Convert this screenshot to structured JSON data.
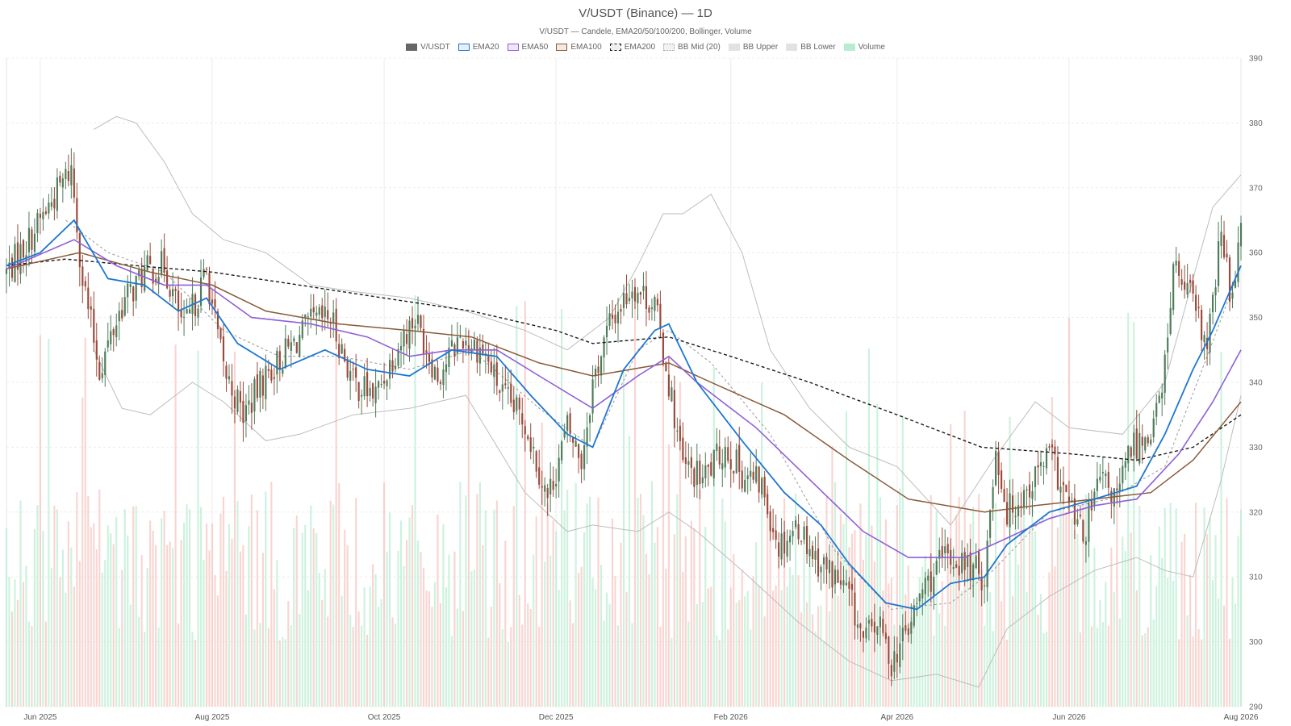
{
  "title": "V/USDT (Binance) — 1D",
  "subtitle": "V/USDT — Candele, EMA20/50/100/200, Bollinger, Volume",
  "colors": {
    "up": "#4d7c5a",
    "down": "#9a4a3a",
    "ema20": "#1f77d0",
    "ema50": "#8e5fd8",
    "ema100": "#8a5a3a",
    "ema200": "#1a1a1a",
    "bb": "#bdbdbd",
    "vol_up": "#b6ecd0",
    "vol_down": "#f6c3bd"
  },
  "legend": [
    {
      "label": "V/USDT",
      "swatch": "candle"
    },
    {
      "label": "EMA20",
      "swatch": "ema20"
    },
    {
      "label": "EMA50",
      "swatch": "ema50"
    },
    {
      "label": "EMA100",
      "swatch": "ema100"
    },
    {
      "label": "EMA200",
      "swatch": "ema200"
    },
    {
      "label": "BB Mid (20)",
      "swatch": "bbmid"
    },
    {
      "label": "BB Upper",
      "swatch": "bbup"
    },
    {
      "label": "BB Lower",
      "swatch": "bblow"
    },
    {
      "label": "Volume",
      "swatch": "volume"
    }
  ],
  "chart_data": {
    "type": "candlestick",
    "x_range": [
      "2025-05-20",
      "2026-08-01"
    ],
    "ylim": [
      290,
      390
    ],
    "yticks": [
      290,
      300,
      310,
      320,
      330,
      340,
      350,
      360,
      370,
      380,
      390
    ],
    "xticks": [
      {
        "date": "2025-06-01",
        "label": "Jun 2025"
      },
      {
        "date": "2025-08-01",
        "label": "Aug 2025"
      },
      {
        "date": "2025-10-01",
        "label": "Oct 2025"
      },
      {
        "date": "2025-12-01",
        "label": "Dec 2025"
      },
      {
        "date": "2026-02-01",
        "label": "Feb 2026"
      },
      {
        "date": "2026-04-01",
        "label": "Apr 2026"
      },
      {
        "date": "2026-06-01",
        "label": "Jun 2026"
      },
      {
        "date": "2026-08-01",
        "label": "Aug 2026"
      }
    ],
    "grid": true,
    "legend_position": "top-center",
    "close_path": [
      [
        "2025-05-20",
        357
      ],
      [
        "2025-05-28",
        362
      ],
      [
        "2025-06-05",
        368
      ],
      [
        "2025-06-12",
        373
      ],
      [
        "2025-06-16",
        356
      ],
      [
        "2025-06-22",
        342
      ],
      [
        "2025-06-30",
        352
      ],
      [
        "2025-07-08",
        357
      ],
      [
        "2025-07-15",
        358
      ],
      [
        "2025-07-22",
        348
      ],
      [
        "2025-07-30",
        357
      ],
      [
        "2025-08-05",
        342
      ],
      [
        "2025-08-12",
        335
      ],
      [
        "2025-08-20",
        341
      ],
      [
        "2025-08-28",
        345
      ],
      [
        "2025-09-05",
        349
      ],
      [
        "2025-09-12",
        350
      ],
      [
        "2025-09-20",
        340
      ],
      [
        "2025-09-28",
        338
      ],
      [
        "2025-10-05",
        345
      ],
      [
        "2025-10-12",
        350
      ],
      [
        "2025-10-20",
        341
      ],
      [
        "2025-10-28",
        347
      ],
      [
        "2025-11-05",
        345
      ],
      [
        "2025-11-12",
        338
      ],
      [
        "2025-11-20",
        334
      ],
      [
        "2025-11-28",
        322
      ],
      [
        "2025-12-05",
        333
      ],
      [
        "2025-12-10",
        328
      ],
      [
        "2025-12-14",
        340
      ],
      [
        "2025-12-20",
        349
      ],
      [
        "2025-12-28",
        355
      ],
      [
        "2026-01-05",
        352
      ],
      [
        "2026-01-10",
        340
      ],
      [
        "2026-01-15",
        327
      ],
      [
        "2026-01-22",
        325
      ],
      [
        "2026-01-30",
        330
      ],
      [
        "2026-02-05",
        326
      ],
      [
        "2026-02-12",
        324
      ],
      [
        "2026-02-18",
        315
      ],
      [
        "2026-02-25",
        318
      ],
      [
        "2026-03-03",
        313
      ],
      [
        "2026-03-10",
        310
      ],
      [
        "2026-03-15",
        307
      ],
      [
        "2026-03-20",
        300
      ],
      [
        "2026-03-25",
        303
      ],
      [
        "2026-03-30",
        297
      ],
      [
        "2026-04-05",
        302
      ],
      [
        "2026-04-10",
        308
      ],
      [
        "2026-04-18",
        313
      ],
      [
        "2026-04-25",
        312
      ],
      [
        "2026-05-02",
        310
      ],
      [
        "2026-05-06",
        330
      ],
      [
        "2026-05-10",
        320
      ],
      [
        "2026-05-18",
        324
      ],
      [
        "2026-05-25",
        329
      ],
      [
        "2026-06-01",
        321
      ],
      [
        "2026-06-06",
        316
      ],
      [
        "2026-06-12",
        325
      ],
      [
        "2026-06-18",
        322
      ],
      [
        "2026-06-23",
        330
      ],
      [
        "2026-06-29",
        332
      ],
      [
        "2026-07-04",
        338
      ],
      [
        "2026-07-08",
        358
      ],
      [
        "2026-07-15",
        352
      ],
      [
        "2026-07-20",
        345
      ],
      [
        "2026-07-25",
        363
      ],
      [
        "2026-07-29",
        352
      ],
      [
        "2026-08-01",
        367
      ]
    ],
    "ema20": [
      [
        "2025-05-20",
        358
      ],
      [
        "2025-06-01",
        360
      ],
      [
        "2025-06-13",
        365
      ],
      [
        "2025-06-25",
        356
      ],
      [
        "2025-07-08",
        355
      ],
      [
        "2025-07-20",
        351
      ],
      [
        "2025-07-30",
        353
      ],
      [
        "2025-08-10",
        346
      ],
      [
        "2025-08-25",
        342
      ],
      [
        "2025-09-10",
        345
      ],
      [
        "2025-09-25",
        342
      ],
      [
        "2025-10-10",
        341
      ],
      [
        "2025-10-25",
        345
      ],
      [
        "2025-11-10",
        344
      ],
      [
        "2025-11-22",
        338
      ],
      [
        "2025-12-05",
        332
      ],
      [
        "2025-12-14",
        330
      ],
      [
        "2025-12-25",
        342
      ],
      [
        "2026-01-05",
        348
      ],
      [
        "2026-01-10",
        349
      ],
      [
        "2026-01-20",
        340
      ],
      [
        "2026-02-05",
        331
      ],
      [
        "2026-02-20",
        323
      ],
      [
        "2026-03-05",
        318
      ],
      [
        "2026-03-15",
        312
      ],
      [
        "2026-03-28",
        306
      ],
      [
        "2026-04-08",
        305
      ],
      [
        "2026-04-20",
        309
      ],
      [
        "2026-05-02",
        310
      ],
      [
        "2026-05-10",
        315
      ],
      [
        "2026-05-25",
        320
      ],
      [
        "2026-06-10",
        322
      ],
      [
        "2026-06-25",
        324
      ],
      [
        "2026-07-05",
        332
      ],
      [
        "2026-07-15",
        342
      ],
      [
        "2026-07-22",
        348
      ],
      [
        "2026-08-01",
        358
      ]
    ],
    "ema50": [
      [
        "2025-05-20",
        357.5
      ],
      [
        "2025-06-13",
        362
      ],
      [
        "2025-06-28",
        358
      ],
      [
        "2025-07-15",
        355
      ],
      [
        "2025-07-30",
        355
      ],
      [
        "2025-08-15",
        350
      ],
      [
        "2025-09-05",
        349
      ],
      [
        "2025-09-25",
        347
      ],
      [
        "2025-10-10",
        344
      ],
      [
        "2025-10-25",
        345
      ],
      [
        "2025-11-10",
        345
      ],
      [
        "2025-11-25",
        341
      ],
      [
        "2025-12-14",
        336
      ],
      [
        "2025-12-30",
        341
      ],
      [
        "2026-01-10",
        344
      ],
      [
        "2026-01-20",
        340
      ],
      [
        "2026-02-10",
        333
      ],
      [
        "2026-03-01",
        325
      ],
      [
        "2026-03-20",
        317
      ],
      [
        "2026-04-05",
        313
      ],
      [
        "2026-04-25",
        313
      ],
      [
        "2026-05-10",
        316
      ],
      [
        "2026-05-25",
        319
      ],
      [
        "2026-06-10",
        321
      ],
      [
        "2026-06-25",
        322
      ],
      [
        "2026-07-10",
        329
      ],
      [
        "2026-07-22",
        337
      ],
      [
        "2026-08-01",
        345
      ]
    ],
    "ema100": [
      [
        "2025-05-20",
        357.5
      ],
      [
        "2025-06-15",
        360
      ],
      [
        "2025-07-10",
        357
      ],
      [
        "2025-08-01",
        355
      ],
      [
        "2025-08-20",
        351
      ],
      [
        "2025-09-15",
        349
      ],
      [
        "2025-10-10",
        348
      ],
      [
        "2025-11-01",
        347
      ],
      [
        "2025-11-25",
        343
      ],
      [
        "2025-12-14",
        341
      ],
      [
        "2026-01-10",
        343
      ],
      [
        "2026-01-25",
        340
      ],
      [
        "2026-02-20",
        335
      ],
      [
        "2026-03-15",
        328
      ],
      [
        "2026-04-05",
        322
      ],
      [
        "2026-05-02",
        320
      ],
      [
        "2026-05-20",
        321
      ],
      [
        "2026-06-10",
        322
      ],
      [
        "2026-06-30",
        323
      ],
      [
        "2026-07-15",
        328
      ],
      [
        "2026-08-01",
        337
      ]
    ],
    "ema200": [
      [
        "2025-05-20",
        358
      ],
      [
        "2025-06-10",
        359
      ],
      [
        "2025-07-05",
        358
      ],
      [
        "2025-08-01",
        357
      ],
      [
        "2025-09-01",
        355
      ],
      [
        "2025-10-01",
        353
      ],
      [
        "2025-11-01",
        351
      ],
      [
        "2025-12-01",
        348
      ],
      [
        "2025-12-14",
        346
      ],
      [
        "2026-01-10",
        347
      ],
      [
        "2026-02-01",
        344
      ],
      [
        "2026-03-01",
        340
      ],
      [
        "2026-04-01",
        335
      ],
      [
        "2026-05-01",
        330
      ],
      [
        "2026-06-01",
        329
      ],
      [
        "2026-06-25",
        328
      ],
      [
        "2026-07-15",
        330
      ],
      [
        "2026-08-01",
        335
      ]
    ],
    "bb_upper": [
      [
        "2025-06-20",
        379
      ],
      [
        "2025-06-28",
        381
      ],
      [
        "2025-07-05",
        380
      ],
      [
        "2025-07-15",
        374
      ],
      [
        "2025-07-25",
        366
      ],
      [
        "2025-08-05",
        362
      ],
      [
        "2025-08-20",
        360
      ],
      [
        "2025-09-05",
        355
      ],
      [
        "2025-09-20",
        354
      ],
      [
        "2025-10-10",
        353
      ],
      [
        "2025-10-30",
        351
      ],
      [
        "2025-11-20",
        348
      ],
      [
        "2025-12-05",
        345
      ],
      [
        "2025-12-20",
        350
      ],
      [
        "2025-12-30",
        358
      ],
      [
        "2026-01-08",
        366
      ],
      [
        "2026-01-15",
        366
      ],
      [
        "2026-01-25",
        369
      ],
      [
        "2026-02-05",
        360
      ],
      [
        "2026-02-15",
        345
      ],
      [
        "2026-03-01",
        336
      ],
      [
        "2026-03-15",
        330
      ],
      [
        "2026-04-01",
        327
      ],
      [
        "2026-04-20",
        318
      ],
      [
        "2026-05-05",
        328
      ],
      [
        "2026-05-20",
        337
      ],
      [
        "2026-06-01",
        333
      ],
      [
        "2026-06-20",
        332
      ],
      [
        "2026-07-05",
        340
      ],
      [
        "2026-07-15",
        356
      ],
      [
        "2026-07-22",
        367
      ],
      [
        "2026-07-28",
        370
      ],
      [
        "2026-08-01",
        372
      ]
    ],
    "bb_mid": [
      [
        "2025-06-10",
        365
      ],
      [
        "2025-06-25",
        360
      ],
      [
        "2025-07-15",
        357
      ],
      [
        "2025-08-05",
        348
      ],
      [
        "2025-08-25",
        344
      ],
      [
        "2025-09-15",
        344
      ],
      [
        "2025-10-10",
        342
      ],
      [
        "2025-11-01",
        345
      ],
      [
        "2025-11-25",
        336
      ],
      [
        "2025-12-14",
        330
      ],
      [
        "2025-12-30",
        345
      ],
      [
        "2026-01-10",
        348
      ],
      [
        "2026-01-25",
        343
      ],
      [
        "2026-02-15",
        332
      ],
      [
        "2026-03-10",
        314
      ],
      [
        "2026-03-30",
        305
      ],
      [
        "2026-04-20",
        306
      ],
      [
        "2026-05-05",
        311
      ],
      [
        "2026-05-25",
        320
      ],
      [
        "2026-06-15",
        322
      ],
      [
        "2026-07-05",
        327
      ],
      [
        "2026-07-20",
        344
      ],
      [
        "2026-08-01",
        358
      ]
    ],
    "bb_lower": [
      [
        "2025-06-20",
        345
      ],
      [
        "2025-06-30",
        336
      ],
      [
        "2025-07-10",
        335
      ],
      [
        "2025-07-25",
        340
      ],
      [
        "2025-08-05",
        337
      ],
      [
        "2025-08-20",
        331
      ],
      [
        "2025-09-01",
        332
      ],
      [
        "2025-09-20",
        335
      ],
      [
        "2025-10-10",
        336
      ],
      [
        "2025-10-30",
        338
      ],
      [
        "2025-11-20",
        323
      ],
      [
        "2025-12-05",
        317
      ],
      [
        "2025-12-14",
        318
      ],
      [
        "2025-12-30",
        317
      ],
      [
        "2026-01-10",
        320
      ],
      [
        "2026-01-20",
        317
      ],
      [
        "2026-02-05",
        311
      ],
      [
        "2026-02-25",
        303
      ],
      [
        "2026-03-15",
        297
      ],
      [
        "2026-03-30",
        294
      ],
      [
        "2026-04-15",
        295
      ],
      [
        "2026-04-30",
        293
      ],
      [
        "2026-05-10",
        302
      ],
      [
        "2026-05-25",
        307
      ],
      [
        "2026-06-10",
        311
      ],
      [
        "2026-06-25",
        313
      ],
      [
        "2026-07-05",
        311
      ],
      [
        "2026-07-15",
        310
      ],
      [
        "2026-07-25",
        325
      ],
      [
        "2026-08-01",
        338
      ]
    ]
  }
}
